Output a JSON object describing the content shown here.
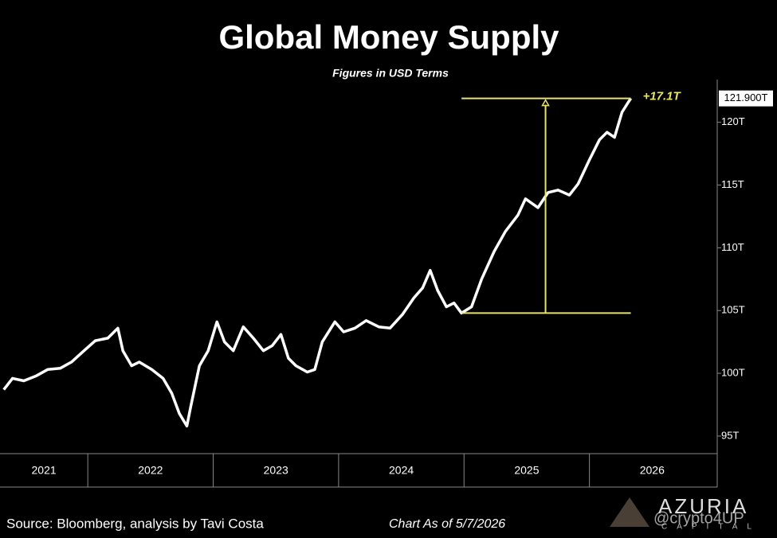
{
  "chart_data": {
    "type": "line",
    "title": "Global Money Supply",
    "subtitle": "Figures in USD Terms",
    "source": "Source: Bloomberg, analysis by Tavi Costa",
    "note": "Chart As of 5/7/2026",
    "watermark": [
      "AZURIA",
      "CAPITAL",
      "@crypto4UP"
    ],
    "x": [
      2021.33,
      2021.4,
      2021.49,
      2021.59,
      2021.68,
      2021.78,
      2021.87,
      2021.97,
      2022.06,
      2022.16,
      2022.24,
      2022.28,
      2022.35,
      2022.41,
      2022.51,
      2022.6,
      2022.67,
      2022.73,
      2022.79,
      2022.82,
      2022.89,
      2022.96,
      2023.03,
      2023.09,
      2023.16,
      2023.24,
      2023.32,
      2023.4,
      2023.47,
      2023.54,
      2023.6,
      2023.66,
      2023.75,
      2023.81,
      2023.87,
      2023.97,
      2024.04,
      2024.13,
      2024.22,
      2024.32,
      2024.41,
      2024.51,
      2024.6,
      2024.67,
      2024.73,
      2024.79,
      2024.86,
      2024.92,
      2024.98,
      2025.06,
      2025.14,
      2025.24,
      2025.33,
      2025.43,
      2025.49,
      2025.59,
      2025.67,
      2025.75,
      2025.84,
      2025.91,
      2026.0,
      2026.08,
      2026.14,
      2026.2,
      2026.26,
      2026.31,
      2026.33
    ],
    "series": [
      {
        "name": "Global Money Supply",
        "color": "#ffffff",
        "values": [
          98.7,
          99.6,
          99.4,
          99.8,
          100.3,
          100.4,
          100.9,
          101.8,
          102.6,
          102.8,
          103.6,
          101.8,
          100.6,
          100.9,
          100.3,
          99.6,
          98.4,
          96.8,
          95.8,
          97.3,
          100.6,
          101.8,
          104.1,
          102.5,
          101.8,
          103.7,
          102.8,
          101.8,
          102.2,
          103.1,
          101.2,
          100.6,
          100.1,
          100.3,
          102.5,
          104.1,
          103.3,
          103.6,
          104.2,
          103.7,
          103.6,
          104.7,
          106.0,
          106.8,
          108.2,
          106.6,
          105.3,
          105.6,
          104.8,
          105.3,
          107.5,
          109.7,
          111.3,
          112.6,
          113.9,
          113.2,
          114.4,
          114.6,
          114.2,
          115.1,
          117.0,
          118.6,
          119.2,
          118.8,
          120.8,
          121.6,
          121.9
        ]
      }
    ],
    "end_label": "121.900T",
    "annotation": {
      "text": "+17.1T",
      "low": 104.8,
      "high": 121.9,
      "x_start": 2024.98,
      "x_end": 2026.33,
      "arrow_x": 2025.65,
      "color": "#e8e36a"
    },
    "xlim": [
      2021.3,
      2027.0
    ],
    "xticks": [
      {
        "value": 2021,
        "label": "2021"
      },
      {
        "value": 2022,
        "label": "2022"
      },
      {
        "value": 2023,
        "label": "2023"
      },
      {
        "value": 2024,
        "label": "2024"
      },
      {
        "value": 2025,
        "label": "2025"
      },
      {
        "value": 2026,
        "label": "2026"
      }
    ],
    "ylim": [
      93.6,
      123.4
    ],
    "yticks": [
      {
        "value": 95,
        "label": "95T"
      },
      {
        "value": 100,
        "label": "100T"
      },
      {
        "value": 105,
        "label": "105T"
      },
      {
        "value": 110,
        "label": "110T"
      },
      {
        "value": 115,
        "label": "115T"
      },
      {
        "value": 120,
        "label": "120T"
      }
    ],
    "grid": false
  }
}
